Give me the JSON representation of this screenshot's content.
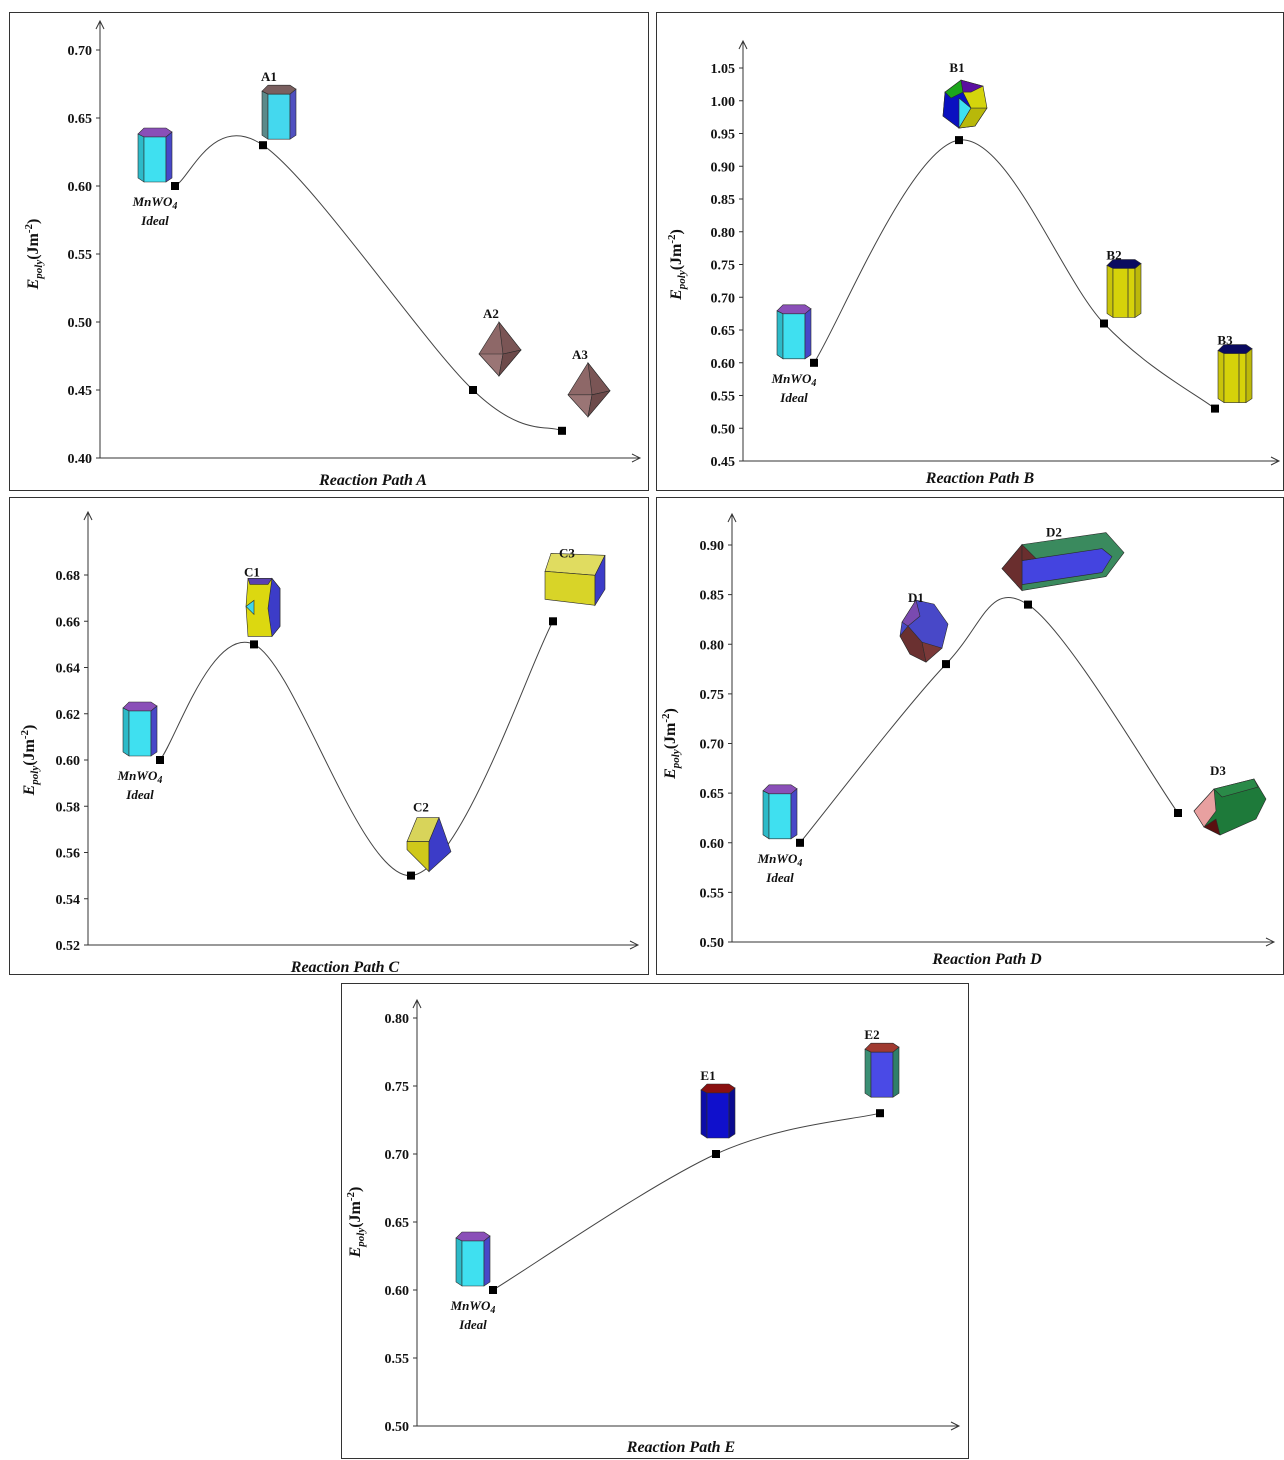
{
  "y_axis_label": {
    "main": "E",
    "sub": "poly",
    "unit_open": "(Jm",
    "unit_exp": "-2",
    "unit_close": ")"
  },
  "ideal_label": {
    "line1_base": "MnWO",
    "line1_sub": "4",
    "line2": "Ideal"
  },
  "colors": {
    "axis": "#333333",
    "curve": "#444444",
    "marker": "#000000"
  },
  "chart_data": [
    {
      "type": "line",
      "xlabel": "Reaction Path A",
      "ylim": [
        0.4,
        0.7
      ],
      "yticks": [
        0.4,
        0.45,
        0.5,
        0.55,
        0.6,
        0.65,
        0.7
      ],
      "points": [
        {
          "label": "MnWO4 Ideal",
          "y": 0.6,
          "icon": "prism-cyan"
        },
        {
          "label": "A1",
          "y": 0.63,
          "icon": "prism-cyan-brown"
        },
        {
          "label": "A2",
          "y": 0.45,
          "icon": "octa-brown"
        },
        {
          "label": "A3",
          "y": 0.42,
          "icon": "octa-brown"
        }
      ]
    },
    {
      "type": "line",
      "xlabel": "Reaction Path B",
      "ylim": [
        0.45,
        1.05
      ],
      "yticks": [
        0.45,
        0.5,
        0.55,
        0.6,
        0.65,
        0.7,
        0.75,
        0.8,
        0.85,
        0.9,
        0.95,
        1.0,
        1.05
      ],
      "points": [
        {
          "label": "MnWO4 Ideal",
          "y": 0.6,
          "icon": "prism-cyan"
        },
        {
          "label": "B1",
          "y": 0.94,
          "icon": "poly-multi"
        },
        {
          "label": "B2",
          "y": 0.66,
          "icon": "prism-yellow"
        },
        {
          "label": "B3",
          "y": 0.53,
          "icon": "prism-yellow"
        }
      ]
    },
    {
      "type": "line",
      "xlabel": "Reaction Path C",
      "ylim": [
        0.52,
        0.68
      ],
      "yticks": [
        0.52,
        0.54,
        0.56,
        0.58,
        0.6,
        0.62,
        0.64,
        0.66,
        0.68
      ],
      "points": [
        {
          "label": "MnWO4 Ideal",
          "y": 0.6,
          "icon": "prism-cyan"
        },
        {
          "label": "C1",
          "y": 0.65,
          "icon": "poly-yellow-blue"
        },
        {
          "label": "C2",
          "y": 0.55,
          "icon": "cube-yellow"
        },
        {
          "label": "C3",
          "y": 0.66,
          "icon": "slab-yellow"
        }
      ]
    },
    {
      "type": "line",
      "xlabel": "Reaction Path D",
      "ylim": [
        0.5,
        0.9
      ],
      "yticks": [
        0.5,
        0.55,
        0.6,
        0.65,
        0.7,
        0.75,
        0.8,
        0.85,
        0.9
      ],
      "points": [
        {
          "label": "MnWO4 Ideal",
          "y": 0.6,
          "icon": "prism-cyan"
        },
        {
          "label": "D1",
          "y": 0.78,
          "icon": "poly-blue-brown"
        },
        {
          "label": "D2",
          "y": 0.84,
          "icon": "long-blue-green"
        },
        {
          "label": "D3",
          "y": 0.63,
          "icon": "poly-green"
        }
      ]
    },
    {
      "type": "line",
      "xlabel": "Reaction Path E",
      "ylim": [
        0.5,
        0.8
      ],
      "yticks": [
        0.5,
        0.55,
        0.6,
        0.65,
        0.7,
        0.75,
        0.8
      ],
      "points": [
        {
          "label": "MnWO4 Ideal",
          "y": 0.6,
          "icon": "prism-cyan"
        },
        {
          "label": "E1",
          "y": 0.7,
          "icon": "prism-blue"
        },
        {
          "label": "E2",
          "y": 0.73,
          "icon": "prism-blue-green"
        }
      ]
    }
  ]
}
